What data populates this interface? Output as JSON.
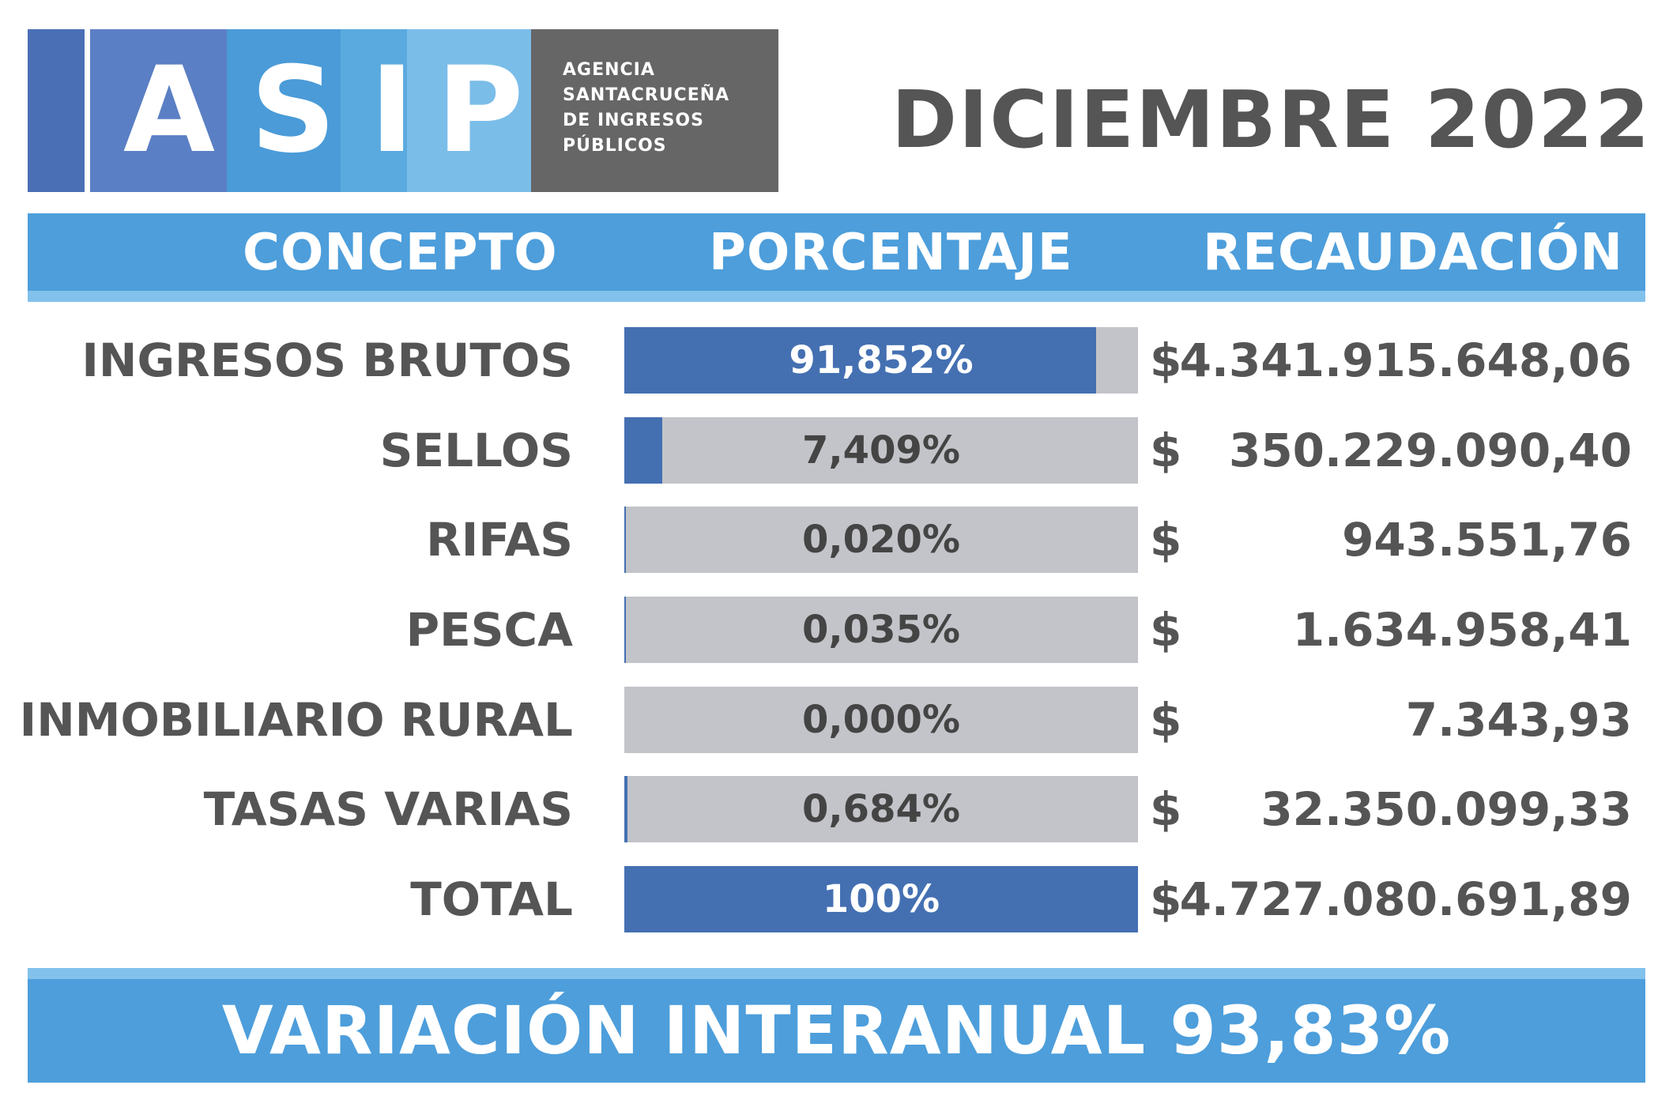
{
  "logo": {
    "letters": [
      "A",
      "S",
      "I",
      "P"
    ],
    "agency_lines": [
      "AGENCIA",
      "SANTACRUCEÑA",
      "DE INGRESOS",
      "PÚBLICOS"
    ]
  },
  "title": "DICIEMBRE 2022",
  "columns": {
    "concepto": "CONCEPTO",
    "porcentaje": "PORCENTAJE",
    "recaudacion": "RECAUDACIÓN"
  },
  "rows": [
    {
      "concepto": "INGRESOS BRUTOS",
      "porcentaje": "91,852%",
      "share": 0.91852,
      "currency": "$",
      "recaudacion": "4.341.915.648,06"
    },
    {
      "concepto": "SELLOS",
      "porcentaje": "7,409%",
      "share": 0.07409,
      "currency": "$",
      "recaudacion": "350.229.090,40"
    },
    {
      "concepto": "RIFAS",
      "porcentaje": "0,020%",
      "share": 0.0002,
      "currency": "$",
      "recaudacion": "943.551,76"
    },
    {
      "concepto": "PESCA",
      "porcentaje": "0,035%",
      "share": 0.00035,
      "currency": "$",
      "recaudacion": "1.634.958,41"
    },
    {
      "concepto": "INMOBILIARIO RURAL",
      "porcentaje": "0,000%",
      "share": 0.0,
      "currency": "$",
      "recaudacion": "7.343,93"
    },
    {
      "concepto": "TASAS VARIAS",
      "porcentaje": "0,684%",
      "share": 0.00684,
      "currency": "$",
      "recaudacion": "32.350.099,33"
    },
    {
      "concepto": "TOTAL",
      "porcentaje": "100%",
      "share": 1.0,
      "currency": "$",
      "recaudacion": "4.727.080.691,89"
    }
  ],
  "footer": "VARIACIÓN INTERANUAL 93,83%",
  "colors": {
    "header_blue": "#4d9edb",
    "bar_fill": "#4470b2",
    "bar_track": "#c2c4c9",
    "text_gray": "#555555"
  }
}
